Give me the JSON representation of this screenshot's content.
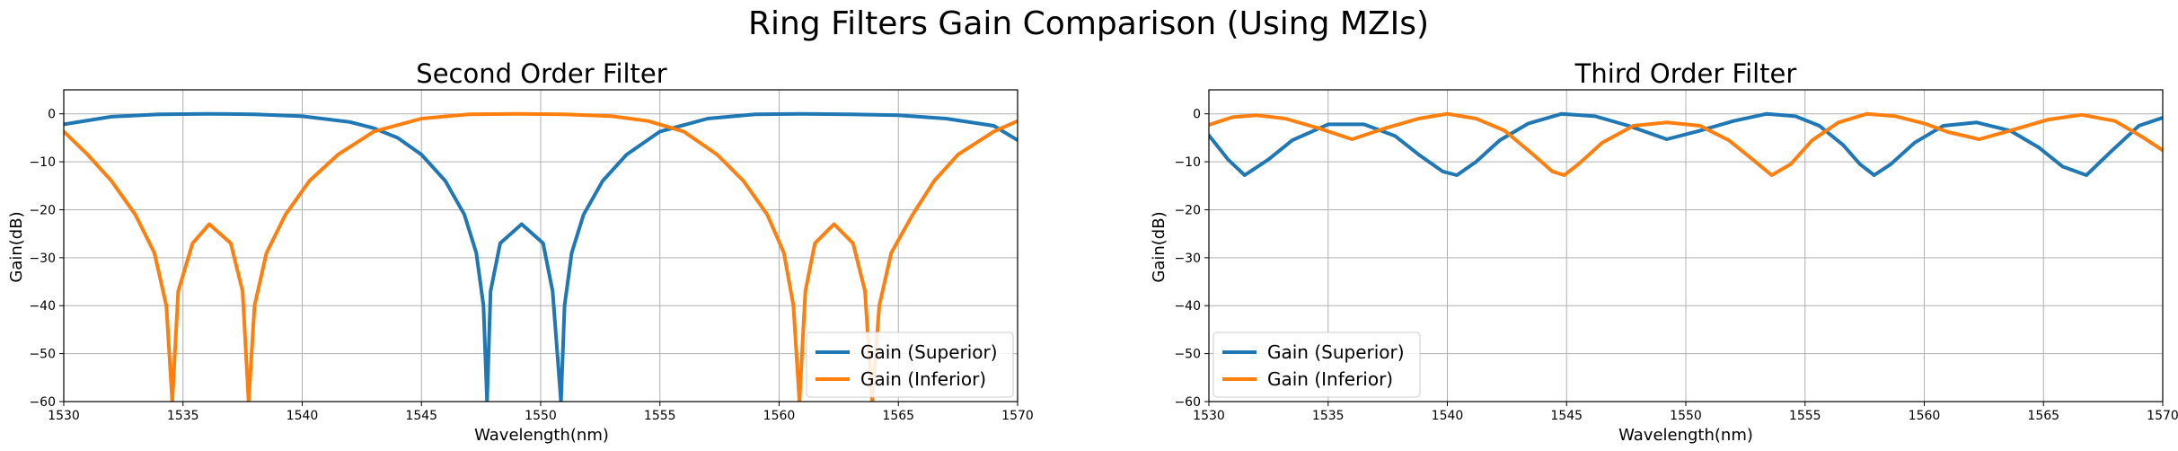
{
  "suptitle": "Ring Filters Gain Comparison (Using MZIs)",
  "colors": {
    "superior": "#1f77b4",
    "inferior": "#ff7f0e"
  },
  "chart_data": [
    {
      "type": "line",
      "title": "Second Order Filter",
      "xlabel": "Wavelength(nm)",
      "ylabel": "Gain(dB)",
      "xlim": [
        1530,
        1570
      ],
      "ylim": [
        -60,
        5
      ],
      "xticks": [
        1530,
        1535,
        1540,
        1545,
        1550,
        1555,
        1560,
        1565,
        1570
      ],
      "yticks": [
        0,
        -10,
        -20,
        -30,
        -40,
        -50,
        -60
      ],
      "ytick_labels": [
        "0",
        "−10",
        "−20",
        "−30",
        "−40",
        "−50",
        "−60"
      ],
      "grid": true,
      "legend": "lower-right",
      "series": [
        {
          "name": "Gain (Superior)",
          "color": "#1f77b4",
          "x": [
            1530,
            1532,
            1534,
            1536,
            1538,
            1540,
            1542,
            1543,
            1544,
            1545,
            1546,
            1546.8,
            1547.3,
            1547.6,
            1547.75,
            1547.9,
            1548.3,
            1549.2,
            1550.1,
            1550.5,
            1550.85,
            1551,
            1551.3,
            1551.8,
            1552.6,
            1553.6,
            1555,
            1557,
            1559,
            1561,
            1563,
            1565,
            1567,
            1569,
            1570
          ],
          "y": [
            -2.2,
            -0.6,
            -0.1,
            0,
            -0.1,
            -0.5,
            -1.7,
            -3,
            -5,
            -8.5,
            -14,
            -21,
            -29,
            -40,
            -60,
            -37,
            -27,
            -23,
            -27,
            -37,
            -60,
            -40,
            -29,
            -21,
            -14,
            -8.5,
            -3.7,
            -1,
            -0.1,
            0,
            -0.1,
            -0.3,
            -1,
            -2.5,
            -5.5
          ]
        },
        {
          "name": "Gain (Inferior)",
          "color": "#ff7f0e",
          "x": [
            1530,
            1531,
            1532,
            1533,
            1533.8,
            1534.3,
            1534.55,
            1534.8,
            1535.4,
            1536.1,
            1537,
            1537.5,
            1537.75,
            1538,
            1538.5,
            1539.3,
            1540.3,
            1541.5,
            1543,
            1545,
            1547,
            1549,
            1551,
            1553,
            1554.5,
            1556,
            1557.4,
            1558.5,
            1559.5,
            1560.2,
            1560.6,
            1560.85,
            1561.1,
            1561.5,
            1562.3,
            1563.1,
            1563.6,
            1563.9,
            1564.2,
            1564.7,
            1565.6,
            1566.5,
            1567.5,
            1569,
            1570
          ],
          "y": [
            -3.7,
            -8.5,
            -14,
            -21,
            -29,
            -40,
            -60,
            -37,
            -27,
            -23,
            -27,
            -37,
            -60,
            -40,
            -29,
            -21,
            -14,
            -8.5,
            -3.7,
            -1,
            -0.1,
            0,
            -0.1,
            -0.5,
            -1.5,
            -3.7,
            -8.5,
            -14,
            -21,
            -29,
            -40,
            -60,
            -37,
            -27,
            -23,
            -27,
            -37,
            -60,
            -40,
            -29,
            -21,
            -14,
            -8.5,
            -3.7,
            -1.5
          ]
        }
      ]
    },
    {
      "type": "line",
      "title": "Third Order Filter",
      "xlabel": "Wavelength(nm)",
      "ylabel": "Gain(dB)",
      "xlim": [
        1530,
        1570
      ],
      "ylim": [
        -60,
        5
      ],
      "xticks": [
        1530,
        1535,
        1540,
        1545,
        1550,
        1555,
        1560,
        1565,
        1570
      ],
      "yticks": [
        0,
        -10,
        -20,
        -30,
        -40,
        -50,
        -60
      ],
      "ytick_labels": [
        "0",
        "−10",
        "−20",
        "−30",
        "−40",
        "−50",
        "−60"
      ],
      "grid": true,
      "legend": "lower-left",
      "series": [
        {
          "name": "Gain (Superior)",
          "color": "#1f77b4",
          "x": [
            1530,
            1530.8,
            1531.5,
            1532.5,
            1533.5,
            1535,
            1536.5,
            1537.8,
            1538.8,
            1539.8,
            1540.4,
            1541.2,
            1542.2,
            1543.4,
            1544.8,
            1546.2,
            1547.6,
            1549.2,
            1550.6,
            1552,
            1553.4,
            1554.6,
            1555.6,
            1556.6,
            1557.3,
            1557.9,
            1558.6,
            1559.6,
            1560.8,
            1562.2,
            1563.6,
            1564.8,
            1565.8,
            1566.8,
            1567.8,
            1569,
            1570
          ],
          "y": [
            -4.5,
            -9.5,
            -12.8,
            -9.5,
            -5.5,
            -2.2,
            -2.2,
            -4.6,
            -8.5,
            -12,
            -12.8,
            -10,
            -5.5,
            -2,
            0,
            -0.5,
            -2.5,
            -5.3,
            -3.5,
            -1.5,
            0,
            -0.5,
            -2.5,
            -6.5,
            -10.5,
            -12.8,
            -10.5,
            -6,
            -2.5,
            -1.8,
            -3.5,
            -7,
            -11,
            -12.8,
            -8,
            -2.5,
            -0.8
          ]
        },
        {
          "name": "Gain (Inferior)",
          "color": "#ff7f0e",
          "x": [
            1530,
            1531,
            1532,
            1533.2,
            1534.6,
            1536,
            1537.4,
            1538.8,
            1540,
            1541.2,
            1542.4,
            1543.6,
            1544.4,
            1544.9,
            1545.5,
            1546.5,
            1547.8,
            1549.2,
            1550.6,
            1551.8,
            1552.8,
            1553.6,
            1554.4,
            1555.3,
            1556.4,
            1557.6,
            1558.8,
            1560,
            1561,
            1562.3,
            1563.6,
            1565.2,
            1566.6,
            1568,
            1569.2,
            1570
          ],
          "y": [
            -2.3,
            -0.7,
            -0.3,
            -1,
            -3,
            -5.3,
            -3,
            -1,
            0,
            -1,
            -3.5,
            -8.5,
            -12,
            -12.8,
            -10.5,
            -6,
            -2.5,
            -1.8,
            -2.5,
            -5.5,
            -9.5,
            -12.8,
            -10.5,
            -5.5,
            -1.8,
            0,
            -0.5,
            -2,
            -3.8,
            -5.3,
            -3.5,
            -1.2,
            -0.2,
            -1.5,
            -5,
            -7.6
          ]
        }
      ]
    }
  ]
}
